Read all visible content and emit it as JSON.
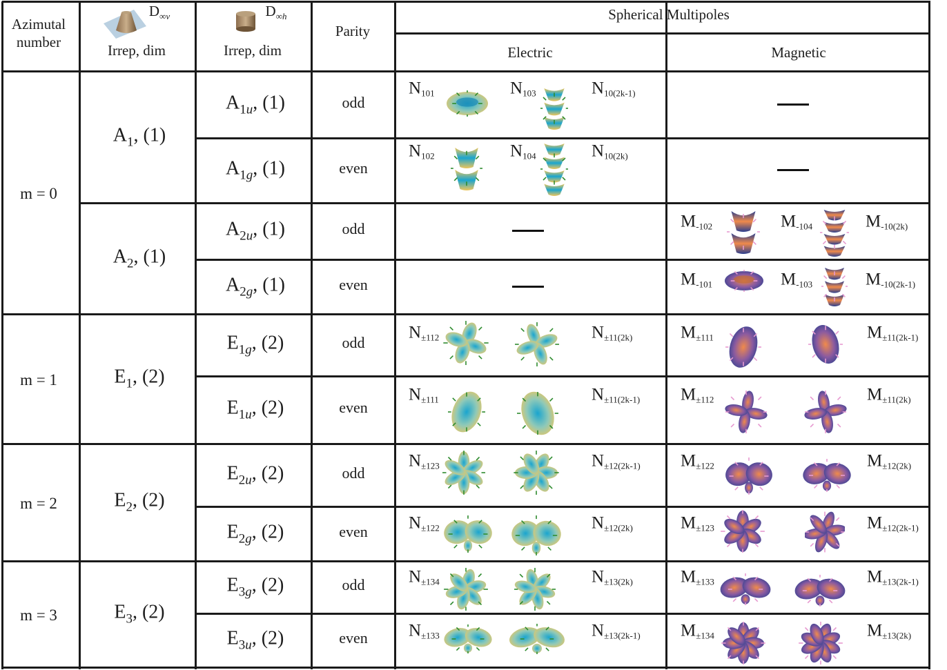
{
  "header": {
    "azimuthal": [
      "Azimutal",
      "number"
    ],
    "dv_group": {
      "symbol": "D",
      "sub": "∞v",
      "caption": "Irrep, dim"
    },
    "dh_group": {
      "symbol": "D",
      "sub": "∞h",
      "caption": "Irrep, dim"
    },
    "parity": "Parity",
    "spherical": "Spherical Multipoles",
    "electric": "Electric",
    "magnetic": "Magnetic"
  },
  "azimuthal_numbers": [
    "m = 0",
    "m = 1",
    "m = 2",
    "m = 3"
  ],
  "dv_irreps": [
    {
      "base": "A",
      "sub": "1",
      "dim": ", (1)"
    },
    {
      "base": "A",
      "sub": "2",
      "dim": ", (1)"
    },
    {
      "base": "E",
      "sub": "1",
      "dim": ", (2)"
    },
    {
      "base": "E",
      "sub": "2",
      "dim": ", (2)"
    },
    {
      "base": "E",
      "sub": "3",
      "dim": ", (2)"
    }
  ],
  "rows": [
    {
      "dh": {
        "base": "A",
        "sub": "1u",
        "dim": ", (1)"
      },
      "parity": "odd",
      "electric": [
        {
          "letter": "N",
          "sub": "101"
        },
        {
          "letter": "N",
          "sub": "103"
        },
        {
          "letter": "N",
          "sub": "10(2k-1)"
        }
      ],
      "magnetic": []
    },
    {
      "dh": {
        "base": "A",
        "sub": "1g",
        "dim": ", (1)"
      },
      "parity": "even",
      "electric": [
        {
          "letter": "N",
          "sub": "102"
        },
        {
          "letter": "N",
          "sub": "104"
        },
        {
          "letter": "N",
          "sub": "10(2k)"
        }
      ],
      "magnetic": []
    },
    {
      "dh": {
        "base": "A",
        "sub": "2u",
        "dim": ", (1)"
      },
      "parity": "odd",
      "electric": [],
      "magnetic": [
        {
          "letter": "M",
          "sub": "-102"
        },
        {
          "letter": "M",
          "sub": "-104"
        },
        {
          "letter": "M",
          "sub": "-10(2k)"
        }
      ]
    },
    {
      "dh": {
        "base": "A",
        "sub": "2g",
        "dim": ", (1)"
      },
      "parity": "even",
      "electric": [],
      "magnetic": [
        {
          "letter": "M",
          "sub": "-101"
        },
        {
          "letter": "M",
          "sub": "-103"
        },
        {
          "letter": "M",
          "sub": "-10(2k-1)"
        }
      ]
    },
    {
      "dh": {
        "base": "E",
        "sub": "1g",
        "dim": ", (2)"
      },
      "parity": "odd",
      "electric": [
        {
          "letter": "N",
          "sub": "±112"
        },
        {
          "letter": "N",
          "sub": "±11(2k)"
        }
      ],
      "magnetic": [
        {
          "letter": "M",
          "sub": "±111"
        },
        {
          "letter": "M",
          "sub": "±11(2k-1)"
        }
      ]
    },
    {
      "dh": {
        "base": "E",
        "sub": "1u",
        "dim": ", (2)"
      },
      "parity": "even",
      "electric": [
        {
          "letter": "N",
          "sub": "±111"
        },
        {
          "letter": "N",
          "sub": "±11(2k-1)"
        }
      ],
      "magnetic": [
        {
          "letter": "M",
          "sub": "±112"
        },
        {
          "letter": "M",
          "sub": "±11(2k)"
        }
      ]
    },
    {
      "dh": {
        "base": "E",
        "sub": "2u",
        "dim": ", (2)"
      },
      "parity": "odd",
      "electric": [
        {
          "letter": "N",
          "sub": "±123"
        },
        {
          "letter": "N",
          "sub": "±12(2k-1)"
        }
      ],
      "magnetic": [
        {
          "letter": "M",
          "sub": "±122"
        },
        {
          "letter": "M",
          "sub": "±12(2k)"
        }
      ]
    },
    {
      "dh": {
        "base": "E",
        "sub": "2g",
        "dim": ", (2)"
      },
      "parity": "even",
      "electric": [
        {
          "letter": "N",
          "sub": "±122"
        },
        {
          "letter": "N",
          "sub": "±12(2k)"
        }
      ],
      "magnetic": [
        {
          "letter": "M",
          "sub": "±123"
        },
        {
          "letter": "M",
          "sub": "±12(2k-1)"
        }
      ]
    },
    {
      "dh": {
        "base": "E",
        "sub": "3g",
        "dim": ", (2)"
      },
      "parity": "odd",
      "electric": [
        {
          "letter": "N",
          "sub": "±134"
        },
        {
          "letter": "N",
          "sub": "±13(2k)"
        }
      ],
      "magnetic": [
        {
          "letter": "M",
          "sub": "±133"
        },
        {
          "letter": "M",
          "sub": "±13(2k-1)"
        }
      ]
    },
    {
      "dh": {
        "base": "E",
        "sub": "3u",
        "dim": ", (2)"
      },
      "parity": "even",
      "electric": [
        {
          "letter": "N",
          "sub": "±133"
        },
        {
          "letter": "N",
          "sub": "±13(2k-1)"
        }
      ],
      "magnetic": [
        {
          "letter": "M",
          "sub": "±134"
        },
        {
          "letter": "M",
          "sub": "±13(2k)"
        }
      ]
    }
  ],
  "colors": {
    "electric_warm": "#f0c65a",
    "electric_cool": "#1aa5cf",
    "magnetic_warm": "#f08a4b",
    "magnetic_cool": "#2b3f8f",
    "arrow_green": "#2e8b2e",
    "arrow_pink": "#e79ad0",
    "grid": "#1a1a1a"
  },
  "icons": [
    "cone-icon",
    "cylinder-icon",
    "dash-icon"
  ]
}
